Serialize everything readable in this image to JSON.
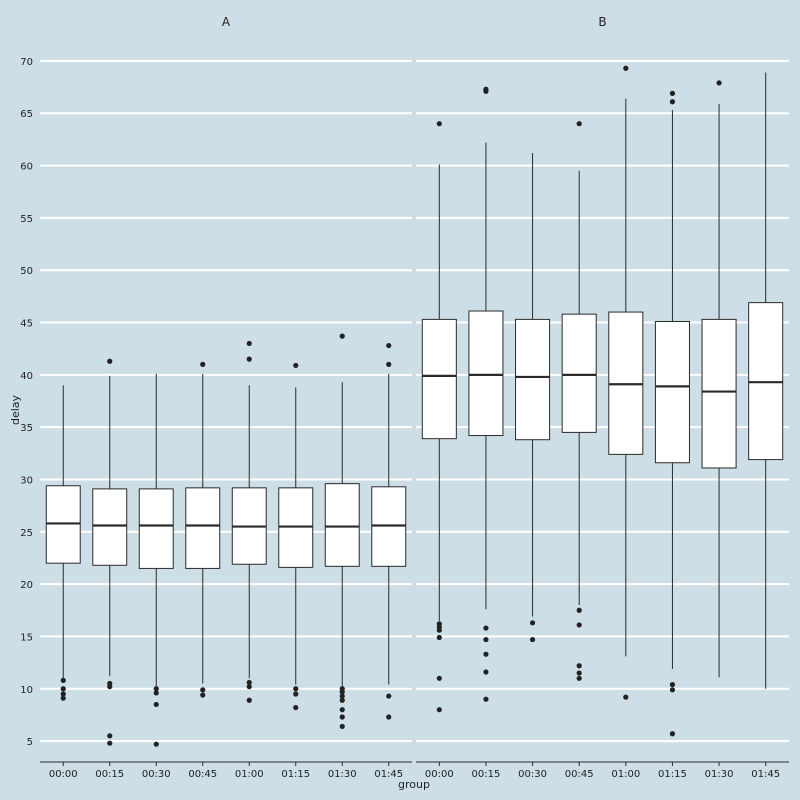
{
  "chart_data": {
    "type": "boxplot",
    "facets": [
      "A",
      "B"
    ],
    "categories": [
      "00:00",
      "00:15",
      "00:30",
      "00:45",
      "01:00",
      "01:15",
      "01:30",
      "01:45"
    ],
    "xlabel": "group",
    "ylabel": "delay",
    "ylim": [
      3,
      72
    ],
    "yticks": [
      5,
      10,
      15,
      20,
      25,
      30,
      35,
      40,
      45,
      50,
      55,
      60,
      65,
      70
    ],
    "grid": "horizontal",
    "colors": {
      "background": "#cddee6",
      "grid": "#ffffff",
      "box_fill": "#ffffff",
      "line": "#2a2a2a",
      "outlier": "#222222"
    },
    "panels": [
      {
        "name": "A",
        "boxes": [
          {
            "category": "00:00",
            "lower_whisker": 11.0,
            "q1": 22.0,
            "median": 25.8,
            "q3": 29.4,
            "upper_whisker": 39.0,
            "outliers": [
              10.8,
              10.0,
              9.5,
              9.1
            ]
          },
          {
            "category": "00:15",
            "lower_whisker": 11.2,
            "q1": 21.8,
            "median": 25.6,
            "q3": 29.1,
            "upper_whisker": 39.9,
            "outliers": [
              41.3,
              10.5,
              10.2,
              5.5,
              4.8
            ]
          },
          {
            "category": "00:30",
            "lower_whisker": 10.2,
            "q1": 21.5,
            "median": 25.6,
            "q3": 29.1,
            "upper_whisker": 40.1,
            "outliers": [
              10.0,
              9.6,
              8.5,
              4.7
            ]
          },
          {
            "category": "00:45",
            "lower_whisker": 10.5,
            "q1": 21.5,
            "median": 25.6,
            "q3": 29.2,
            "upper_whisker": 40.1,
            "outliers": [
              41.0,
              9.9,
              9.4
            ]
          },
          {
            "category": "01:00",
            "lower_whisker": 11.0,
            "q1": 21.9,
            "median": 25.5,
            "q3": 29.2,
            "upper_whisker": 39.0,
            "outliers": [
              43.0,
              41.5,
              10.6,
              10.2,
              8.9
            ]
          },
          {
            "category": "01:15",
            "lower_whisker": 10.4,
            "q1": 21.6,
            "median": 25.5,
            "q3": 29.2,
            "upper_whisker": 38.8,
            "outliers": [
              40.9,
              10.0,
              9.5,
              8.2
            ]
          },
          {
            "category": "01:30",
            "lower_whisker": 10.2,
            "q1": 21.7,
            "median": 25.5,
            "q3": 29.6,
            "upper_whisker": 39.3,
            "outliers": [
              43.7,
              10.0,
              9.7,
              9.3,
              8.9,
              8.0,
              7.3,
              6.4
            ]
          },
          {
            "category": "01:45",
            "lower_whisker": 10.4,
            "q1": 21.7,
            "median": 25.6,
            "q3": 29.3,
            "upper_whisker": 40.1,
            "outliers": [
              42.8,
              41.0,
              9.3,
              7.3
            ]
          }
        ]
      },
      {
        "name": "B",
        "boxes": [
          {
            "category": "00:00",
            "lower_whisker": 16.5,
            "q1": 33.9,
            "median": 39.9,
            "q3": 45.3,
            "upper_whisker": 60.1,
            "outliers": [
              64.0,
              16.2,
              15.9,
              15.6,
              14.9,
              11.0,
              8.0
            ]
          },
          {
            "category": "00:15",
            "lower_whisker": 17.6,
            "q1": 34.2,
            "median": 40.0,
            "q3": 46.1,
            "upper_whisker": 62.2,
            "outliers": [
              67.3,
              67.1,
              15.8,
              14.7,
              13.3,
              11.6,
              9.0
            ]
          },
          {
            "category": "00:30",
            "lower_whisker": 16.9,
            "q1": 33.8,
            "median": 39.8,
            "q3": 45.3,
            "upper_whisker": 61.2,
            "outliers": [
              16.3,
              14.7
            ]
          },
          {
            "category": "00:45",
            "lower_whisker": 18.0,
            "q1": 34.5,
            "median": 40.0,
            "q3": 45.8,
            "upper_whisker": 59.5,
            "outliers": [
              64.0,
              17.5,
              16.1,
              12.2,
              11.5,
              11.0
            ]
          },
          {
            "category": "01:00",
            "lower_whisker": 13.1,
            "q1": 32.4,
            "median": 39.1,
            "q3": 46.0,
            "upper_whisker": 66.4,
            "outliers": [
              69.3,
              9.2
            ]
          },
          {
            "category": "01:15",
            "lower_whisker": 11.9,
            "q1": 31.6,
            "median": 38.9,
            "q3": 45.1,
            "upper_whisker": 65.3,
            "outliers": [
              66.9,
              66.1,
              10.4,
              9.9,
              5.7
            ]
          },
          {
            "category": "01:30",
            "lower_whisker": 11.1,
            "q1": 31.1,
            "median": 38.4,
            "q3": 45.3,
            "upper_whisker": 65.9,
            "outliers": [
              67.9
            ]
          },
          {
            "category": "01:45",
            "lower_whisker": 10.0,
            "q1": 31.9,
            "median": 39.3,
            "q3": 46.9,
            "upper_whisker": 68.9,
            "outliers": []
          }
        ]
      }
    ]
  }
}
